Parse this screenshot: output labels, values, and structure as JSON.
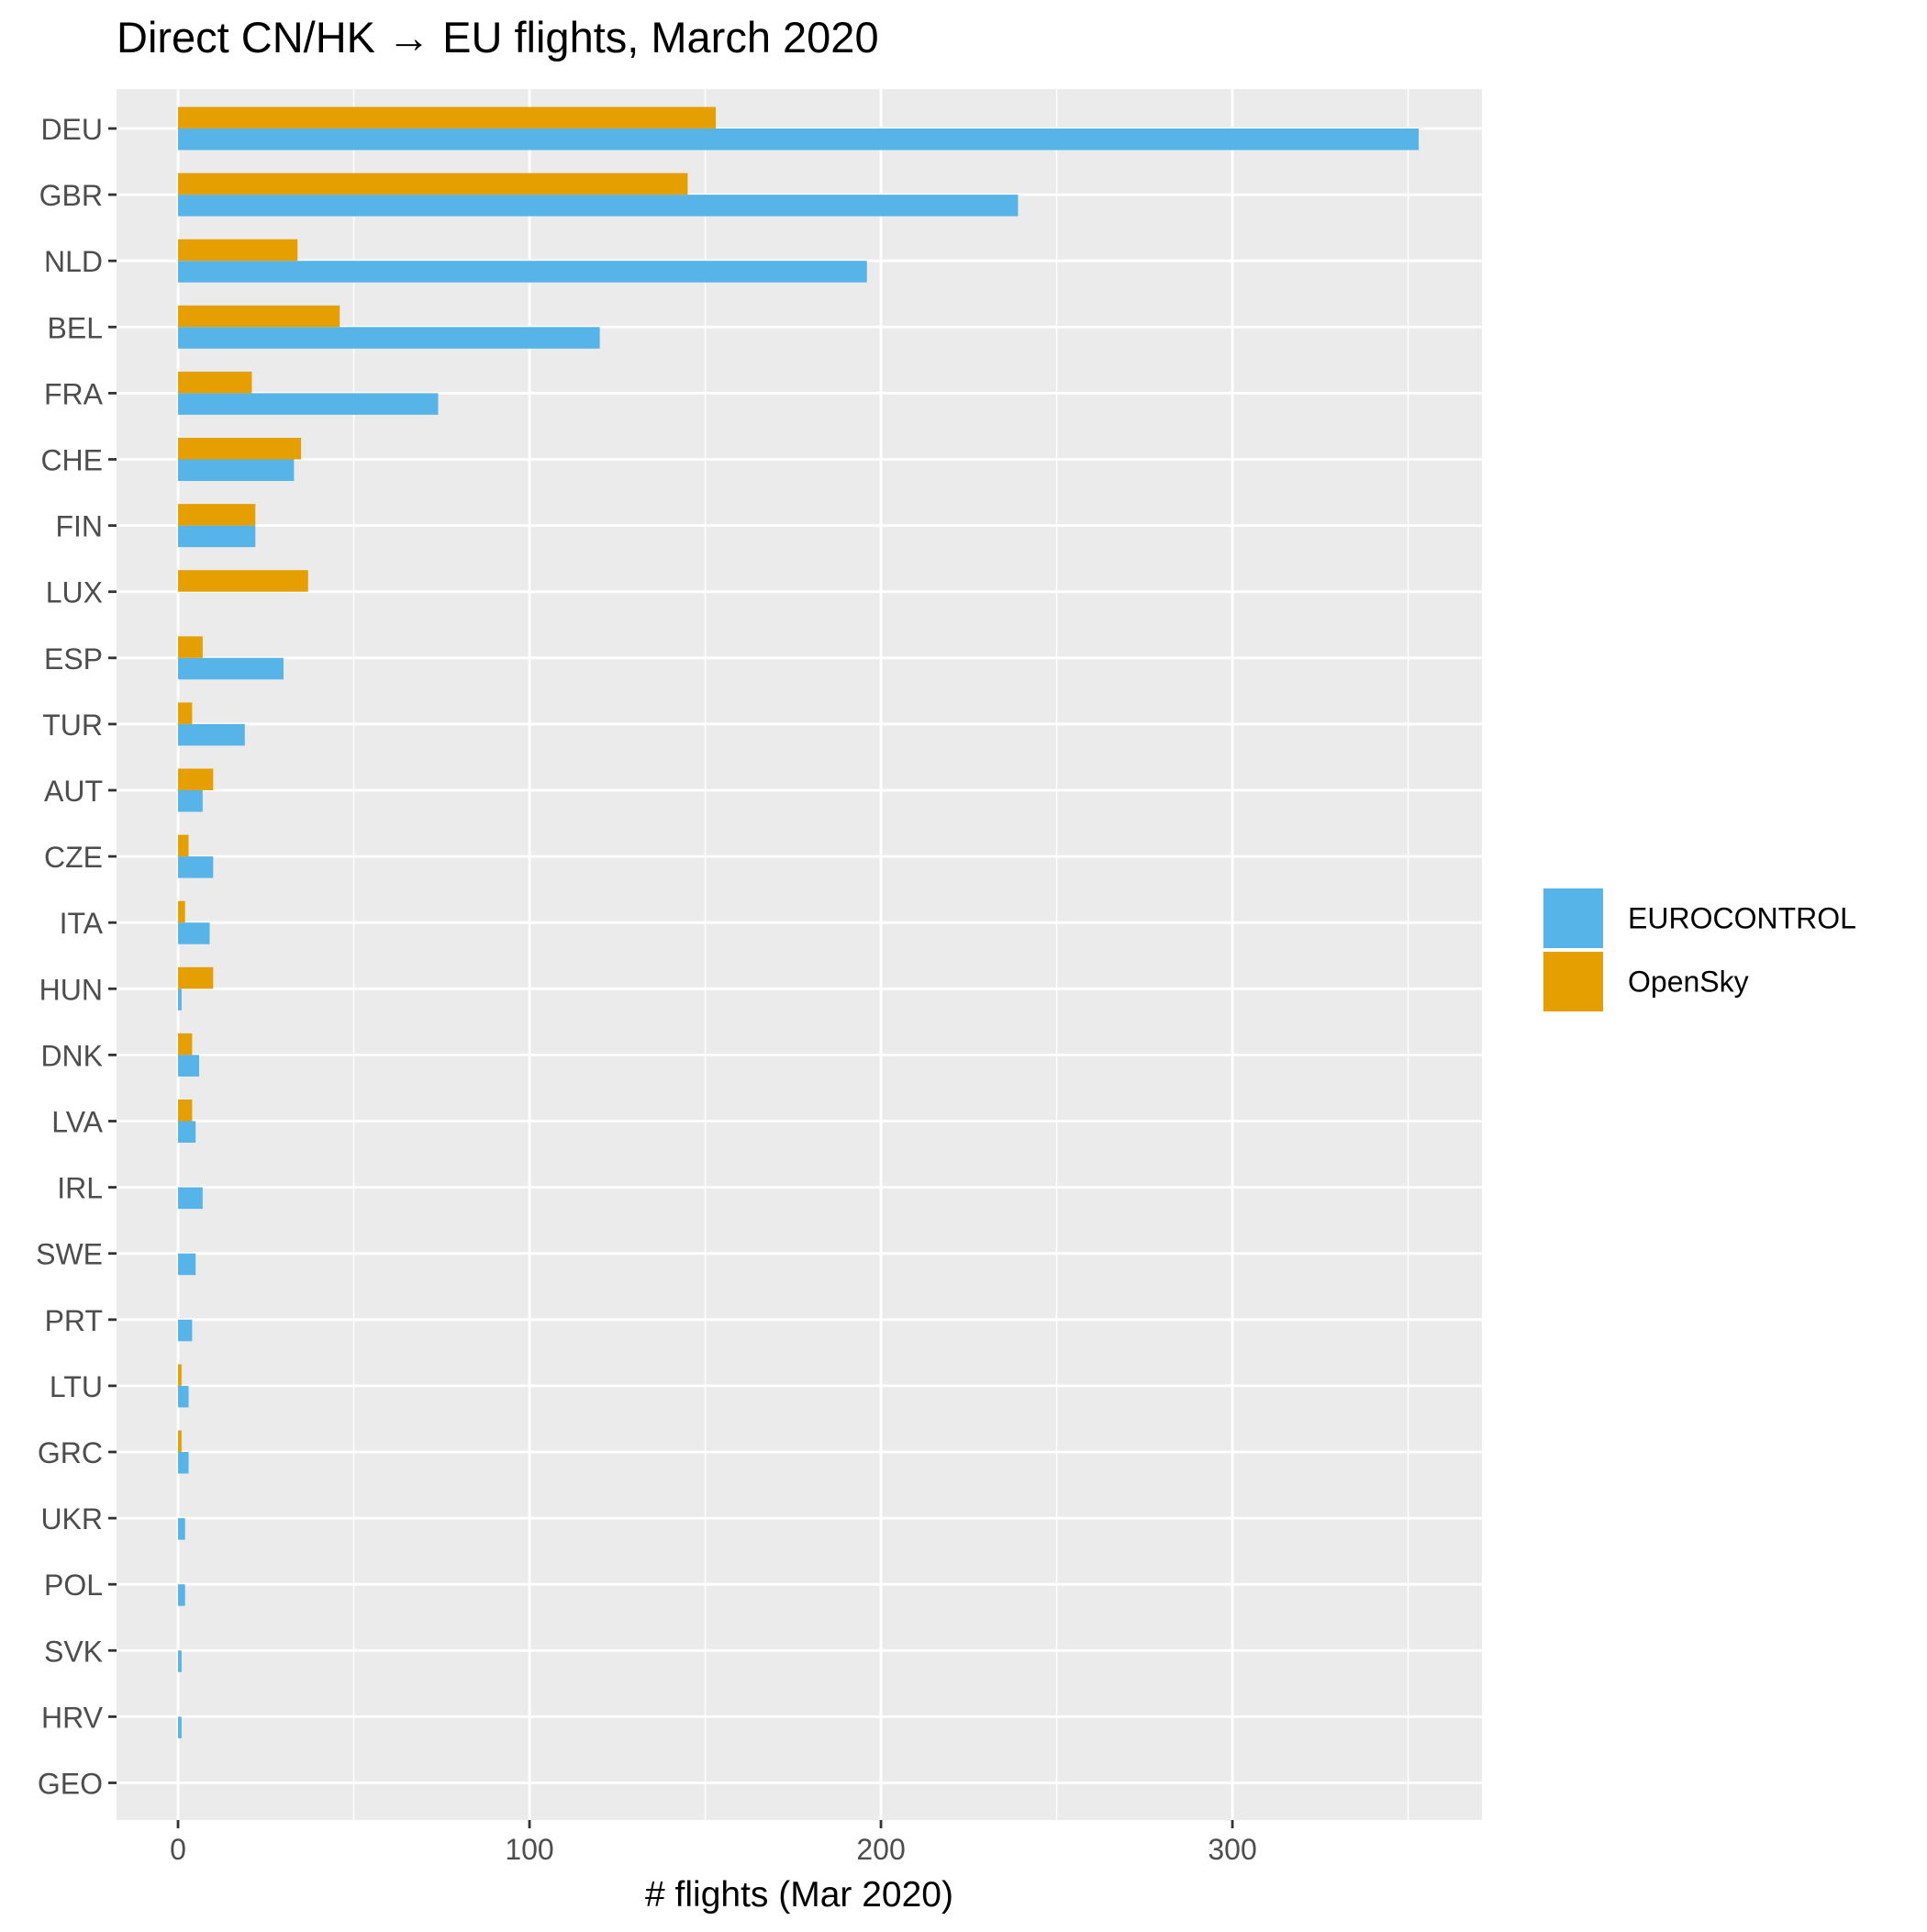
{
  "chart_data": {
    "type": "bar",
    "orientation": "horizontal",
    "title": "Direct CN/HK → EU flights, March 2020",
    "xlabel": "# flights (Mar 2020)",
    "ylabel": "",
    "xlim": [
      -17.5,
      371
    ],
    "xticks": [
      0,
      100,
      200,
      300
    ],
    "x_minor_ticks": [
      50,
      150,
      250,
      350
    ],
    "grid": true,
    "legend_position": "right",
    "categories": [
      "DEU",
      "GBR",
      "NLD",
      "BEL",
      "FRA",
      "CHE",
      "FIN",
      "LUX",
      "ESP",
      "TUR",
      "AUT",
      "CZE",
      "ITA",
      "HUN",
      "DNK",
      "LVA",
      "IRL",
      "SWE",
      "PRT",
      "LTU",
      "GRC",
      "UKR",
      "POL",
      "SVK",
      "HRV",
      "GEO"
    ],
    "series": [
      {
        "name": "EUROCONTROL",
        "color": "#56B4E9",
        "values": [
          353,
          239,
          196,
          120,
          74,
          33,
          22,
          0,
          30,
          19,
          7,
          10,
          9,
          1,
          6,
          5,
          7,
          5,
          4,
          3,
          3,
          2,
          2,
          1,
          1,
          0
        ]
      },
      {
        "name": "OpenSky",
        "color": "#E69F00",
        "values": [
          153,
          145,
          34,
          46,
          21,
          35,
          22,
          37,
          7,
          4,
          10,
          3,
          2,
          10,
          4,
          4,
          0,
          0,
          0,
          1,
          1,
          0,
          0,
          0,
          0,
          0
        ]
      }
    ]
  }
}
